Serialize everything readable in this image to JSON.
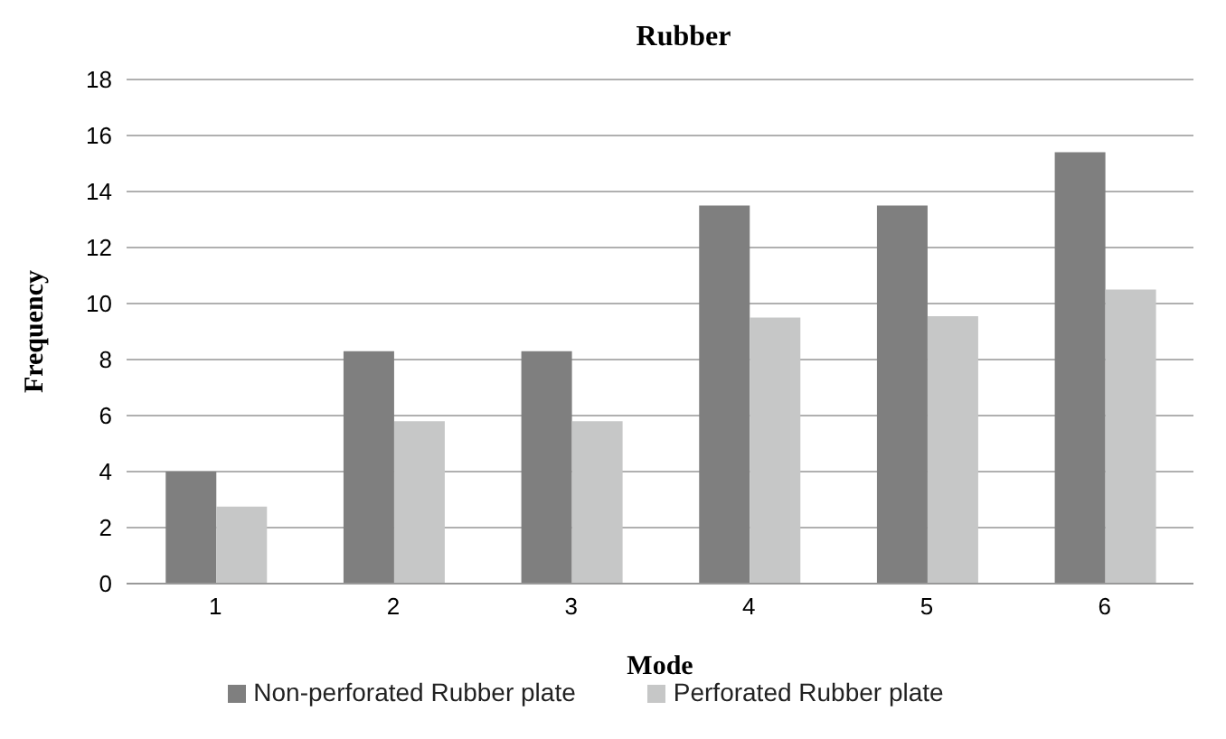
{
  "chart_data": {
    "type": "bar",
    "title": "Rubber",
    "xlabel": "Mode",
    "ylabel": "Frequency",
    "categories": [
      "1",
      "2",
      "3",
      "4",
      "5",
      "6"
    ],
    "series": [
      {
        "name": "Non-perforated Rubber plate",
        "color": "#7f7f7f",
        "values": [
          4.0,
          8.3,
          8.3,
          13.5,
          13.5,
          15.4
        ]
      },
      {
        "name": "Perforated Rubber plate",
        "color": "#c6c7c7",
        "values": [
          2.75,
          5.8,
          5.8,
          9.5,
          9.55,
          10.5
        ]
      }
    ],
    "ylim": [
      0,
      18
    ],
    "yticks": [
      0,
      2,
      4,
      6,
      8,
      10,
      12,
      14,
      16,
      18
    ],
    "grid": "y",
    "legend": "bottom"
  }
}
